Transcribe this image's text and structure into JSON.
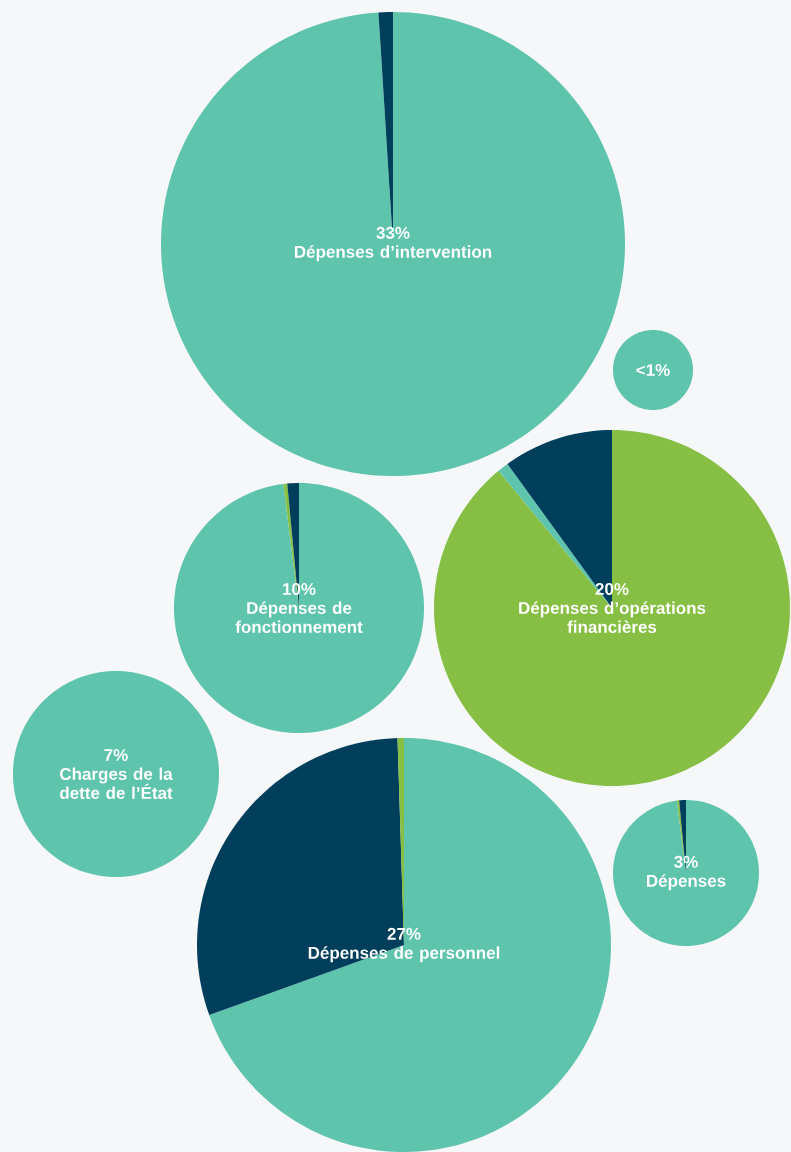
{
  "chart_data": [
    {
      "type": "pie",
      "title": "33%",
      "subtitle": "Dépenses d’intervention",
      "categories": [
        null,
        null
      ],
      "values": [
        99,
        1
      ],
      "colors": [
        "#5fc4ac",
        "#003f5c"
      ]
    },
    {
      "type": "pie",
      "title": "<1%",
      "categories": [
        null
      ],
      "values": [
        100
      ],
      "colors": [
        "#5fc4ac"
      ]
    },
    {
      "type": "pie",
      "title": "10%",
      "subtitle": "Dépenses de fonctionnement",
      "categories": [
        null,
        null,
        null
      ],
      "values": [
        98,
        0.5,
        1.5
      ],
      "colors": [
        "#5fc4ac",
        "#86bf43",
        "#003f5c"
      ]
    },
    {
      "type": "pie",
      "title": "20%",
      "subtitle": "Dépenses d’opérations financières",
      "categories": [
        null,
        null,
        null
      ],
      "values": [
        89,
        1,
        10
      ],
      "colors": [
        "#86bf43",
        "#5fc4ac",
        "#003f5c"
      ]
    },
    {
      "type": "pie",
      "title": "7%",
      "subtitle": "Charges de la dette de l’État",
      "categories": [
        null
      ],
      "values": [
        100
      ],
      "colors": [
        "#5fc4ac"
      ]
    },
    {
      "type": "pie",
      "title": "27%",
      "subtitle": "Dépenses de personnel",
      "categories": [
        null,
        null,
        null
      ],
      "values": [
        69.5,
        30,
        0.5
      ],
      "colors": [
        "#5fc4ac",
        "#003f5c",
        "#86bf43"
      ]
    },
    {
      "type": "pie",
      "title": "3%",
      "subtitle": "Dépenses",
      "categories": [
        null,
        null,
        null
      ],
      "values": [
        98,
        0.5,
        1.5
      ],
      "colors": [
        "#5fc4ac",
        "#86bf43",
        "#003f5c"
      ]
    }
  ]
}
